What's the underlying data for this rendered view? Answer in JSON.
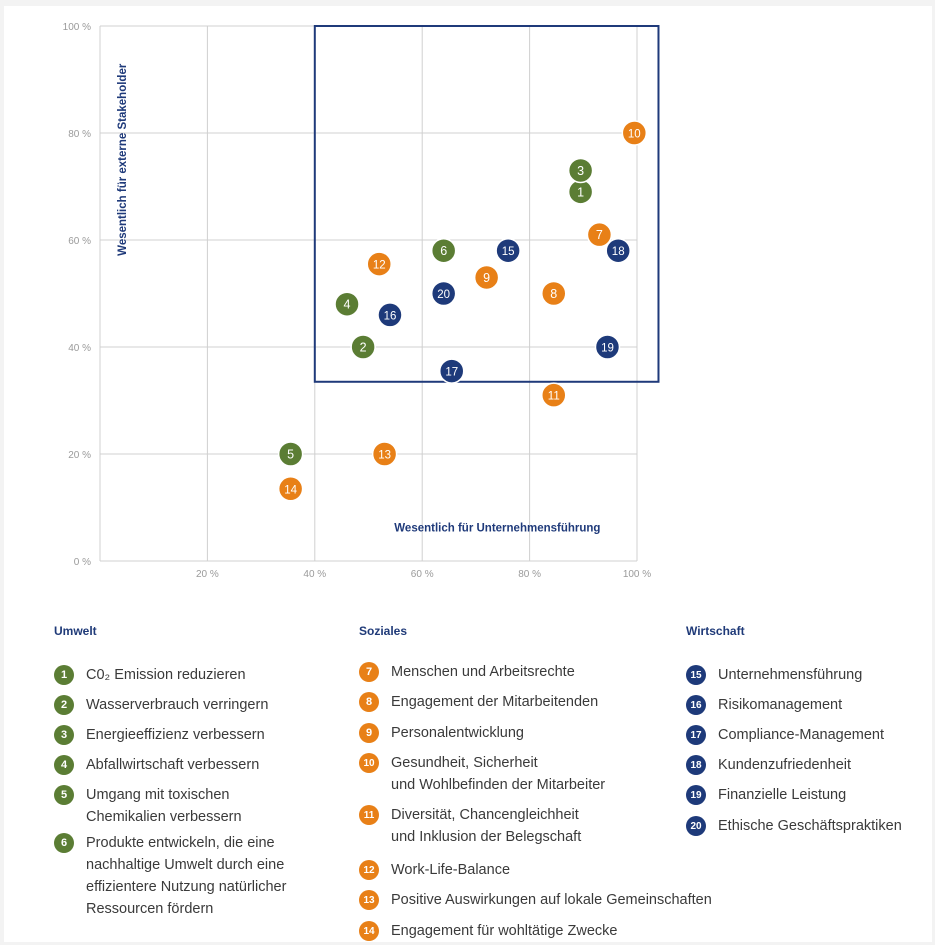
{
  "colors": {
    "Umwelt": "#5b7d34",
    "Soziales": "#e88017",
    "Wirtschaft": "#1e3a7a",
    "grid": "#d0d0d0",
    "box": "#1f3a7a",
    "axis_text": "#9a9a9a"
  },
  "chart_data": {
    "type": "scatter",
    "xlim": [
      0,
      100
    ],
    "ylim": [
      0,
      100
    ],
    "x_ticks": [
      "20 %",
      "40 %",
      "60 %",
      "80 %",
      "100 %"
    ],
    "y_ticks": [
      "0 %",
      "20 %",
      "40 %",
      "60 %",
      "80 %",
      "100 %"
    ],
    "xlabel": "Wesentlich für Unternehmensführung",
    "ylabel": "Wesentlich für externe Stakeholder",
    "grid": true,
    "highlight_region": {
      "x": [
        40,
        104
      ],
      "y": [
        33.5,
        100
      ]
    },
    "points": [
      {
        "id": "1",
        "category": "Umwelt",
        "x": 89.5,
        "y": 69
      },
      {
        "id": "2",
        "category": "Umwelt",
        "x": 49,
        "y": 40
      },
      {
        "id": "3",
        "category": "Umwelt",
        "x": 89.5,
        "y": 73
      },
      {
        "id": "4",
        "category": "Umwelt",
        "x": 46,
        "y": 48
      },
      {
        "id": "5",
        "category": "Umwelt",
        "x": 35.5,
        "y": 20
      },
      {
        "id": "6",
        "category": "Umwelt",
        "x": 64,
        "y": 58
      },
      {
        "id": "7",
        "category": "Soziales",
        "x": 93,
        "y": 61
      },
      {
        "id": "8",
        "category": "Soziales",
        "x": 84.5,
        "y": 50
      },
      {
        "id": "9",
        "category": "Soziales",
        "x": 72,
        "y": 53
      },
      {
        "id": "10",
        "category": "Soziales",
        "x": 99.5,
        "y": 80
      },
      {
        "id": "11",
        "category": "Soziales",
        "x": 84.5,
        "y": 31
      },
      {
        "id": "12",
        "category": "Soziales",
        "x": 52,
        "y": 55.5
      },
      {
        "id": "13",
        "category": "Soziales",
        "x": 53,
        "y": 20
      },
      {
        "id": "14",
        "category": "Soziales",
        "x": 35.5,
        "y": 13.5
      },
      {
        "id": "15",
        "category": "Wirtschaft",
        "x": 76,
        "y": 58
      },
      {
        "id": "16",
        "category": "Wirtschaft",
        "x": 54,
        "y": 46
      },
      {
        "id": "17",
        "category": "Wirtschaft",
        "x": 65.5,
        "y": 35.5
      },
      {
        "id": "18",
        "category": "Wirtschaft",
        "x": 96.5,
        "y": 58
      },
      {
        "id": "19",
        "category": "Wirtschaft",
        "x": 94.5,
        "y": 40
      },
      {
        "id": "20",
        "category": "Wirtschaft",
        "x": 64,
        "y": 50
      }
    ]
  },
  "legend": {
    "groups": [
      {
        "title": "Umwelt",
        "category": "Umwelt",
        "items": [
          {
            "id": "1",
            "label": "C0₂ Emission reduzieren"
          },
          {
            "id": "2",
            "label": "Wasserverbrauch verringern"
          },
          {
            "id": "3",
            "label": "Energieeffizienz verbessern"
          },
          {
            "id": "4",
            "label": "Abfallwirtschaft verbessern"
          },
          {
            "id": "5",
            "label": "Umgang mit toxischen\nChemikalien verbessern"
          },
          {
            "id": "6",
            "label": "Produkte entwickeln, die eine\nnachhaltige Umwelt durch eine\neffizientere Nutzung  natürlicher\nRessourcen fördern"
          }
        ]
      },
      {
        "title": "Soziales",
        "category": "Soziales",
        "items": [
          {
            "id": "7",
            "label": "Menschen und Arbeitsrechte"
          },
          {
            "id": "8",
            "label": "Engagement der Mitarbeitenden"
          },
          {
            "id": "9",
            "label": "Personalentwicklung"
          },
          {
            "id": "10",
            "label": "Gesundheit, Sicherheit\nund Wohlbefinden der Mitarbeiter"
          },
          {
            "id": "11",
            "label": "Diversität, Chancengleichheit\nund Inklusion der Belegschaft"
          },
          {
            "id": "12",
            "label": "Work-Life-Balance"
          },
          {
            "id": "13",
            "label": "Positive Auswirkungen auf lokale Gemeinschaften"
          },
          {
            "id": "14",
            "label": "Engagement für wohltätige Zwecke"
          }
        ]
      },
      {
        "title": "Wirtschaft",
        "category": "Wirtschaft",
        "items": [
          {
            "id": "15",
            "label": "Unternehmensführung"
          },
          {
            "id": "16",
            "label": "Risikomanagement"
          },
          {
            "id": "17",
            "label": "Compliance-Management"
          },
          {
            "id": "18",
            "label": "Kundenzufriedenheit"
          },
          {
            "id": "19",
            "label": "Finanzielle Leistung"
          },
          {
            "id": "20",
            "label": "Ethische Geschäftspraktiken"
          }
        ]
      }
    ]
  }
}
